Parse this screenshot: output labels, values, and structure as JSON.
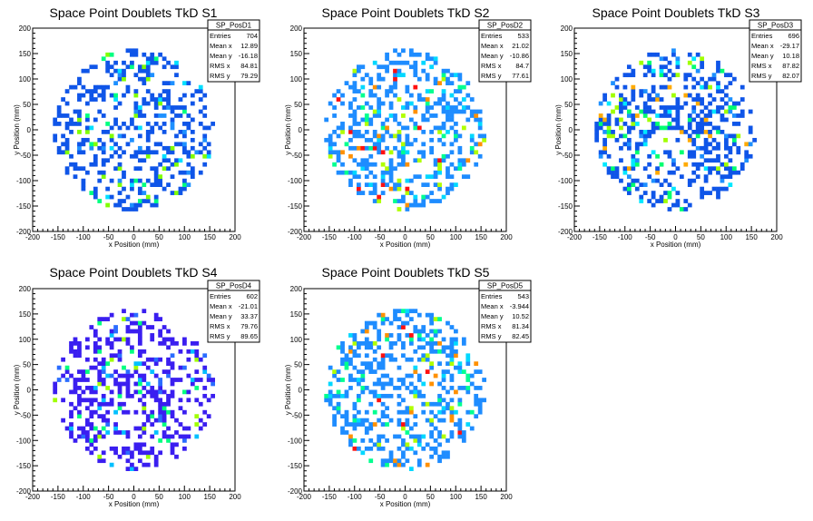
{
  "chart_data": [
    {
      "type": "heatmap",
      "title": "Space Point Doublets TkD S1",
      "xlabel": "x Position (mm)",
      "ylabel": "y Position (mm)",
      "xlim": [
        -200,
        200
      ],
      "ylim": [
        -200,
        200
      ],
      "xticks": [
        "-200",
        "-150",
        "-100",
        "-50",
        "0",
        "50",
        "100",
        "150",
        "200"
      ],
      "yticks": [
        "200",
        "150",
        "100",
        "50",
        "0",
        "-50",
        "-100",
        "-150",
        "-200"
      ],
      "stats": {
        "name": "SP_PosD1",
        "rows": [
          {
            "label": "Entries",
            "value": "704"
          },
          {
            "label": "Mean x",
            "value": "12.89"
          },
          {
            "label": "Mean y",
            "value": "-16.18"
          },
          {
            "label": "RMS x",
            "value": "84.81"
          },
          {
            "label": "RMS y",
            "value": "79.29"
          }
        ]
      }
    },
    {
      "type": "heatmap",
      "title": "Space Point Doublets TkD S2",
      "xlabel": "x Position (mm)",
      "ylabel": "y Position (mm)",
      "xlim": [
        -200,
        200
      ],
      "ylim": [
        -200,
        200
      ],
      "xticks": [
        "-200",
        "-150",
        "-100",
        "-50",
        "0",
        "50",
        "100",
        "150",
        "200"
      ],
      "yticks": [
        "200",
        "150",
        "100",
        "50",
        "0",
        "-50",
        "-100",
        "-150",
        "-200"
      ],
      "stats": {
        "name": "SP_PosD2",
        "rows": [
          {
            "label": "Entries",
            "value": "533"
          },
          {
            "label": "Mean x",
            "value": "21.02"
          },
          {
            "label": "Mean y",
            "value": "-10.86"
          },
          {
            "label": "RMS x",
            "value": "84.7"
          },
          {
            "label": "RMS y",
            "value": "77.61"
          }
        ]
      }
    },
    {
      "type": "heatmap",
      "title": "Space Point Doublets TkD S3",
      "xlabel": "x Position (mm)",
      "ylabel": "y Position (mm)",
      "xlim": [
        -200,
        200
      ],
      "ylim": [
        -200,
        200
      ],
      "xticks": [
        "-200",
        "-150",
        "-100",
        "-50",
        "0",
        "50",
        "100",
        "150",
        "200"
      ],
      "yticks": [
        "200",
        "150",
        "100",
        "50",
        "0",
        "-50",
        "-100",
        "-150",
        "-200"
      ],
      "stats": {
        "name": "SP_PosD3",
        "rows": [
          {
            "label": "Entries",
            "value": "696"
          },
          {
            "label": "Mean x",
            "value": "-29.17"
          },
          {
            "label": "Mean y",
            "value": "10.18"
          },
          {
            "label": "RMS x",
            "value": "87.82"
          },
          {
            "label": "RMS y",
            "value": "82.07"
          }
        ]
      }
    },
    {
      "type": "heatmap",
      "title": "Space Point Doublets TkD S4",
      "xlabel": "x Position (mm)",
      "ylabel": "y Position (mm)",
      "xlim": [
        -200,
        200
      ],
      "ylim": [
        -200,
        200
      ],
      "xticks": [
        "-200",
        "-150",
        "-100",
        "-50",
        "0",
        "50",
        "100",
        "150",
        "200"
      ],
      "yticks": [
        "200",
        "150",
        "100",
        "50",
        "0",
        "-50",
        "-100",
        "-150",
        "-200"
      ],
      "stats": {
        "name": "SP_PosD4",
        "rows": [
          {
            "label": "Entries",
            "value": "602"
          },
          {
            "label": "Mean x",
            "value": "-21.01"
          },
          {
            "label": "Mean y",
            "value": "33.37"
          },
          {
            "label": "RMS x",
            "value": "79.76"
          },
          {
            "label": "RMS y",
            "value": "89.65"
          }
        ]
      }
    },
    {
      "type": "heatmap",
      "title": "Space Point Doublets TkD S5",
      "xlabel": "x Position (mm)",
      "ylabel": "y Position (mm)",
      "xlim": [
        -200,
        200
      ],
      "ylim": [
        -200,
        200
      ],
      "xticks": [
        "-200",
        "-150",
        "-100",
        "-50",
        "0",
        "50",
        "100",
        "150",
        "200"
      ],
      "yticks": [
        "200",
        "150",
        "100",
        "50",
        "0",
        "-50",
        "-100",
        "-150",
        "-200"
      ],
      "stats": {
        "name": "SP_PosD5",
        "rows": [
          {
            "label": "Entries",
            "value": "543"
          },
          {
            "label": "Mean x",
            "value": "-3.944"
          },
          {
            "label": "Mean y",
            "value": "10.52"
          },
          {
            "label": "RMS x",
            "value": "81.34"
          },
          {
            "label": "RMS y",
            "value": "82.45"
          }
        ]
      }
    }
  ],
  "palettes": [
    [
      "#0f55e8",
      "#0f55e8",
      "#0f55e8",
      "#0f55e8",
      "#1e90ff",
      "#00e0ff",
      "#00ff80",
      "#80ff00"
    ],
    [
      "#1e8cff",
      "#1e8cff",
      "#1e8cff",
      "#00d8ff",
      "#00ff90",
      "#b0ff00",
      "#ff9000",
      "#ff1010"
    ],
    [
      "#0f55e8",
      "#0f55e8",
      "#0f55e8",
      "#1e90ff",
      "#00e8ff",
      "#00ff70",
      "#a0ff00",
      "#ffaa00"
    ],
    [
      "#3a1ef0",
      "#3a1ef0",
      "#3a1ef0",
      "#3a1ef0",
      "#2a6cff",
      "#00c0ff",
      "#00ff80",
      "#a0ff00"
    ],
    [
      "#1e8cff",
      "#1e8cff",
      "#1e8cff",
      "#00d8ff",
      "#00ff90",
      "#b0ff00",
      "#ff9000",
      "#ff1010"
    ]
  ]
}
